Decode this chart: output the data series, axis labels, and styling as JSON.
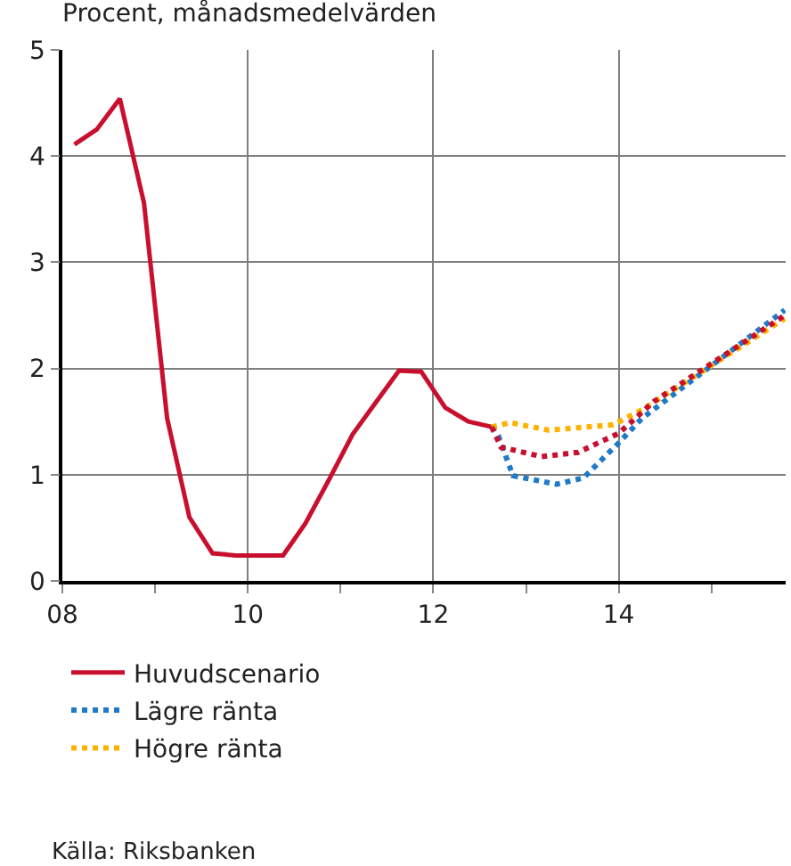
{
  "chart_data": {
    "type": "line",
    "title": "Procent, månadsmedelvärden",
    "xlim": [
      8,
      15.8
    ],
    "ylim": [
      0,
      5
    ],
    "xticks": [
      {
        "value": 8,
        "label": "08"
      },
      {
        "value": 9,
        "label": null
      },
      10,
      {
        "value": 11,
        "label": null
      },
      12,
      {
        "value": 13,
        "label": null
      },
      14,
      {
        "value": 15,
        "label": null
      }
    ],
    "yticks": [
      0,
      1,
      2,
      3,
      4,
      5
    ],
    "grid": true,
    "legend": "bottom",
    "marker": "none",
    "series": [
      {
        "name": "Huvudscenario",
        "color": "#c8102e",
        "line_style": "solid",
        "x": [
          8.13,
          8.37,
          8.62,
          8.88,
          9.13,
          9.37,
          9.62,
          9.87,
          10.38,
          10.62,
          10.88,
          11.13,
          11.38,
          11.63,
          11.87,
          12.13,
          12.38,
          12.63
        ],
        "values": [
          4.11,
          4.25,
          4.54,
          3.56,
          1.53,
          0.6,
          0.26,
          0.24,
          0.24,
          0.54,
          0.96,
          1.38,
          1.68,
          1.98,
          1.97,
          1.63,
          1.5,
          1.45
        ]
      },
      {
        "name": "Lägre ränta",
        "color": "#1f7ac9",
        "line_style": "dotted",
        "x": [
          12.63,
          12.7,
          12.86,
          13.33,
          13.62,
          14.0,
          14.25,
          15.79
        ],
        "values": [
          1.45,
          1.37,
          0.99,
          0.91,
          0.97,
          1.3,
          1.53,
          2.55
        ]
      },
      {
        "name": "Högre ränta",
        "color": "#fbb300",
        "line_style": "dotted",
        "x": [
          12.63,
          12.83,
          13.24,
          13.94,
          14.25,
          15.79
        ],
        "values": [
          1.45,
          1.49,
          1.42,
          1.47,
          1.61,
          2.47
        ]
      },
      {
        "color": "#c8102e",
        "line_style": "dotted",
        "x": [
          12.63,
          12.73,
          13.17,
          13.56,
          14.0,
          14.38,
          15.79
        ],
        "values": [
          1.45,
          1.26,
          1.17,
          1.21,
          1.39,
          1.69,
          2.5
        ]
      }
    ],
    "annotations": [
      "Källa: Riksbanken"
    ]
  }
}
